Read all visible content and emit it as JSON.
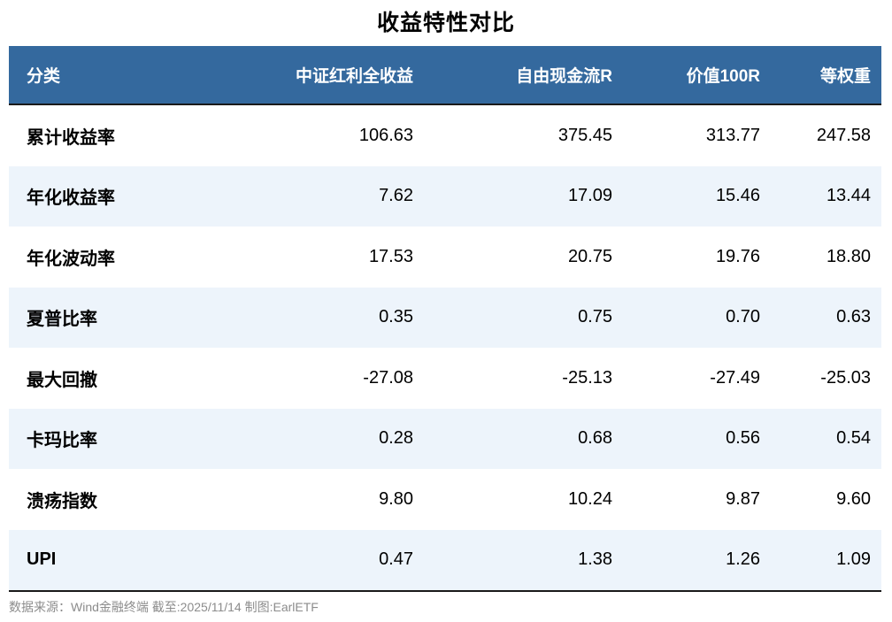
{
  "title": "收益特性对比",
  "table": {
    "headers": [
      "分类",
      "中证红利全收益",
      "自由现金流R",
      "价值100R",
      "等权重"
    ],
    "rows": [
      {
        "label": "累计收益率",
        "values": [
          "106.63",
          "375.45",
          "313.77",
          "247.58"
        ]
      },
      {
        "label": "年化收益率",
        "values": [
          "7.62",
          "17.09",
          "15.46",
          "13.44"
        ]
      },
      {
        "label": "年化波动率",
        "values": [
          "17.53",
          "20.75",
          "19.76",
          "18.80"
        ]
      },
      {
        "label": "夏普比率",
        "values": [
          "0.35",
          "0.75",
          "0.70",
          "0.63"
        ]
      },
      {
        "label": "最大回撤",
        "values": [
          "-27.08",
          "-25.13",
          "-27.49",
          "-25.03"
        ]
      },
      {
        "label": "卡玛比率",
        "values": [
          "0.28",
          "0.68",
          "0.56",
          "0.54"
        ]
      },
      {
        "label": "溃疡指数",
        "values": [
          "9.80",
          "10.24",
          "9.87",
          "9.60"
        ]
      },
      {
        "label": "UPI",
        "values": [
          "0.47",
          "1.38",
          "1.26",
          "1.09"
        ]
      }
    ]
  },
  "footer": {
    "source": "数据来源：Wind金融终端 截至:2025/11/14 制图:EarlETF"
  },
  "colors": {
    "header_bg": "#34699E",
    "stripe_bg": "#EDF4FB",
    "border_dark": "#1A1A1A",
    "footer_text": "#8C8C8C"
  },
  "chart_data": {
    "type": "table",
    "title": "收益特性对比",
    "categories": [
      "累计收益率",
      "年化收益率",
      "年化波动率",
      "夏普比率",
      "最大回撤",
      "卡玛比率",
      "溃疡指数",
      "UPI"
    ],
    "series": [
      {
        "name": "中证红利全收益",
        "values": [
          106.63,
          7.62,
          17.53,
          0.35,
          -27.08,
          0.28,
          9.8,
          0.47
        ]
      },
      {
        "name": "自由现金流R",
        "values": [
          375.45,
          17.09,
          20.75,
          0.75,
          -25.13,
          0.68,
          10.24,
          1.38
        ]
      },
      {
        "name": "价值100R",
        "values": [
          313.77,
          15.46,
          19.76,
          0.7,
          -27.49,
          0.56,
          9.87,
          1.26
        ]
      },
      {
        "name": "等权重",
        "values": [
          247.58,
          13.44,
          18.8,
          0.63,
          -25.03,
          0.54,
          9.6,
          1.09
        ]
      }
    ],
    "source_note": "数据来源：Wind金融终端 截至:2025/11/14 制图:EarlETF",
    "layout": {
      "header_bg": "#34699E",
      "zebra_striping": true,
      "numeric_align": "right"
    }
  }
}
